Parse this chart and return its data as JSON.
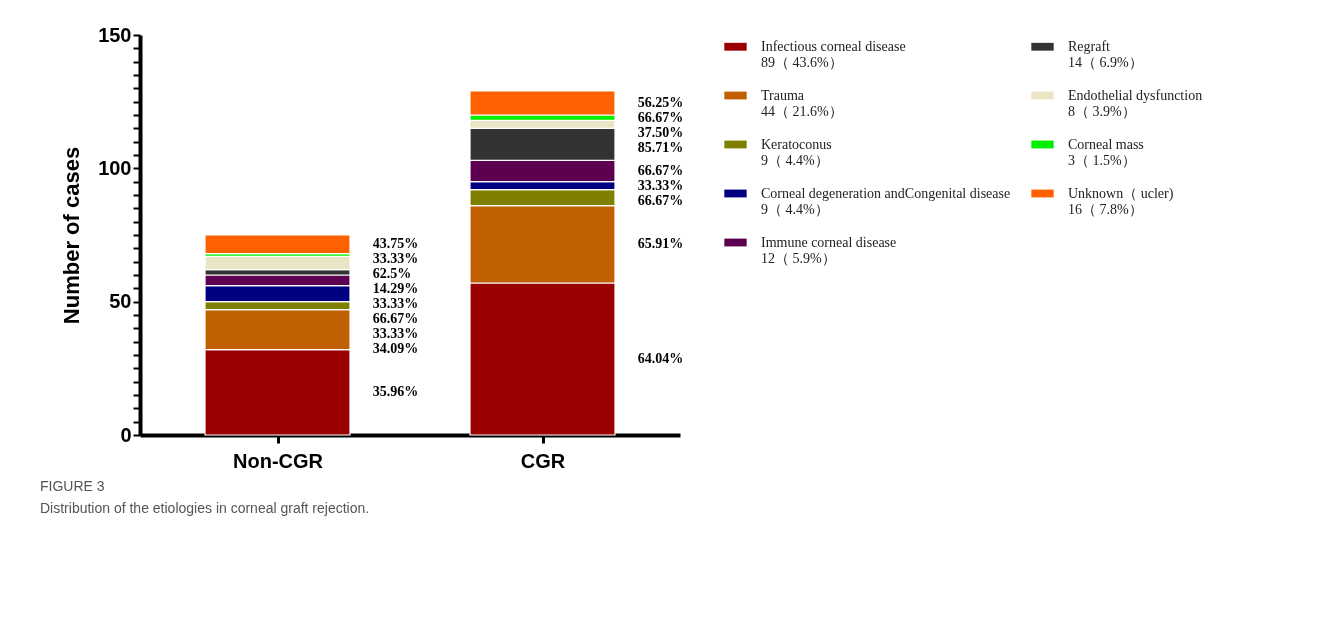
{
  "chart_data": {
    "type": "bar",
    "stacked": true,
    "ylabel": "Number of cases",
    "categories": [
      "Non-CGR",
      "CGR"
    ],
    "series": [
      {
        "name": "Infectious corneal disease\n89（ 43.6%）",
        "color": "#9b0000",
        "values": [
          32,
          57
        ]
      },
      {
        "name": "Trauma\n44（ 21.6%）",
        "color": "#c06000",
        "values": [
          15,
          29
        ]
      },
      {
        "name": "Keratoconus\n9（ 4.4%）",
        "color": "#808000",
        "values": [
          3,
          6
        ]
      },
      {
        "name": "Corneal degeneration andCongenital disease\n9（ 4.4%）",
        "color": "#000080",
        "values": [
          6,
          3
        ]
      },
      {
        "name": "Immune corneal disease\n12（ 5.9%）",
        "color": "#5e0050",
        "values": [
          4,
          8
        ]
      },
      {
        "name": "Regraft\n14（ 6.9%）",
        "color": "#333333",
        "values": [
          2,
          12
        ]
      },
      {
        "name": "Endothelial dysfunction\n8（ 3.9%）",
        "color": "#ebe5c8",
        "values": [
          5,
          3
        ]
      },
      {
        "name": "Corneal mass\n3（ 1.5%）",
        "color": "#00ee00",
        "values": [
          1,
          2
        ]
      },
      {
        "name": "Unknown（ ucler)\n16（ 7.8%）",
        "color": "#ff6000",
        "values": [
          7,
          9
        ]
      }
    ],
    "ylim": [
      0,
      150
    ],
    "yticks": [
      0,
      {
        "value": 5,
        "label": null
      },
      {
        "value": 10,
        "label": null
      },
      {
        "value": 15,
        "label": null
      },
      {
        "value": 20,
        "label": null
      },
      {
        "value": 25,
        "label": null
      },
      {
        "value": 30,
        "label": null
      },
      {
        "value": 35,
        "label": null
      },
      {
        "value": 40,
        "label": null
      },
      {
        "value": 45,
        "label": null
      },
      50,
      {
        "value": 55,
        "label": null
      },
      {
        "value": 60,
        "label": null
      },
      {
        "value": 65,
        "label": null
      },
      {
        "value": 70,
        "label": null
      },
      {
        "value": 75,
        "label": null
      },
      {
        "value": 80,
        "label": null
      },
      {
        "value": 85,
        "label": null
      },
      {
        "value": 90,
        "label": null
      },
      {
        "value": 95,
        "label": null
      },
      100,
      {
        "value": 105,
        "label": null
      },
      {
        "value": 110,
        "label": null
      },
      {
        "value": 115,
        "label": null
      },
      {
        "value": 120,
        "label": null
      },
      {
        "value": 125,
        "label": null
      },
      {
        "value": 130,
        "label": null
      },
      {
        "value": 135,
        "label": null
      },
      {
        "value": 140,
        "label": null
      },
      {
        "value": 145,
        "label": null
      },
      150
    ],
    "grid": false,
    "legend": "right",
    "annotations": [
      "FIGURE 3",
      "Distribution of the etiologies in corneal graft rejection.",
      "43.75%",
      "33.33%",
      "62.5%",
      "14.29%",
      "33.33%",
      "66.67%",
      "33.33%",
      "34.09%",
      "35.96%",
      "56.25%",
      "66.67%",
      "37.50%",
      "85.71%",
      "66.67%",
      "33.33%",
      "66.67%",
      "65.91%",
      "64.04%"
    ]
  }
}
